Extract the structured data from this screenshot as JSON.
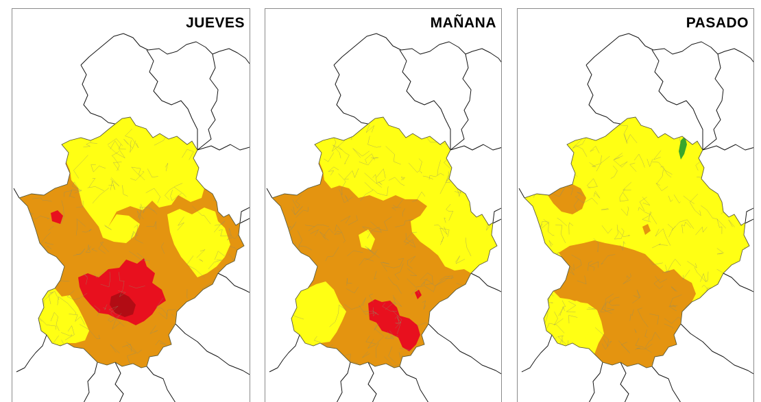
{
  "colors": {
    "sin_riesgo": "#ffff14",
    "riesgo_moderado": "#e49410",
    "riesgo_alto": "#e8101e",
    "riesgo_extremo": "#b20c14",
    "verde": "#3aa62c",
    "limites": "#111111",
    "municipios": "#8e8e6a",
    "fondo": "#ffffff"
  },
  "panels": [
    {
      "id": "jueves",
      "title": "JUEVES",
      "dominant_level": "riesgo_moderado",
      "levels_present": [
        "sin_riesgo",
        "riesgo_moderado",
        "riesgo_alto",
        "riesgo_extremo"
      ]
    },
    {
      "id": "manana",
      "title": "MAÑANA",
      "dominant_level": "riesgo_moderado",
      "levels_present": [
        "sin_riesgo",
        "riesgo_moderado",
        "riesgo_alto"
      ]
    },
    {
      "id": "pasado",
      "title": "PASADO",
      "dominant_level": "sin_riesgo",
      "levels_present": [
        "verde",
        "sin_riesgo",
        "riesgo_moderado"
      ]
    }
  ]
}
